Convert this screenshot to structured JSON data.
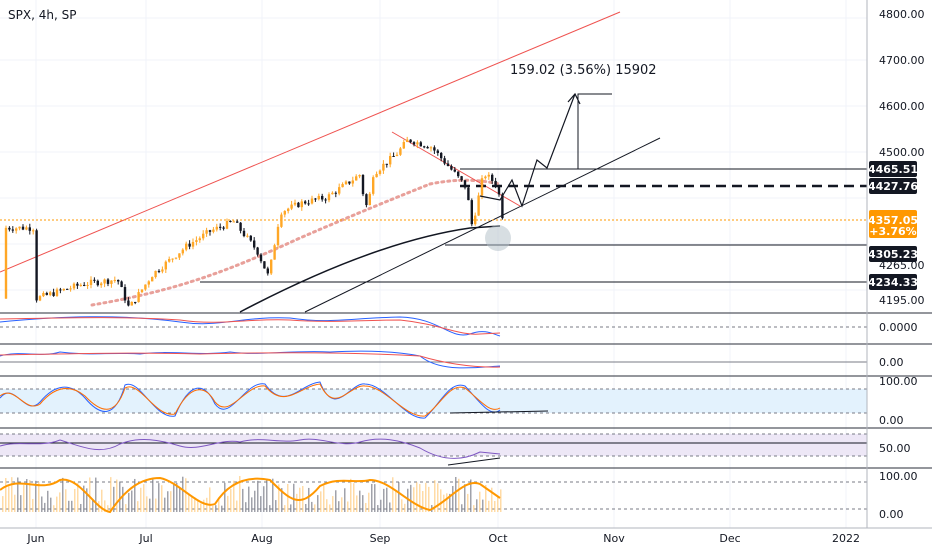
{
  "header": {
    "symbol_label": "SPX, 4h, SP"
  },
  "colors": {
    "bull": "#ffa726",
    "bear": "#131722",
    "channel": "#ef5350",
    "ma_dots": "#e8a09a",
    "fast_line": "#2962ff",
    "slow_line": "#ef5350",
    "stoch_bg": "#e3f2fd",
    "rsi_bg": "#ede7f6",
    "rsi_line": "#7e57c2",
    "tag_bg": "#131722",
    "last_price": "#ff9800"
  },
  "chart_data": [
    {
      "type": "candlestick",
      "title": "SPX, 4h, SP",
      "x_ticks": [
        "Jun",
        "Jul",
        "Aug",
        "Sep",
        "Oct",
        "Nov",
        "Dec",
        "2022"
      ],
      "y_ticks": [
        "4800.00",
        "4700.00",
        "4600.00",
        "4500.00",
        "4265.00",
        "4195.00"
      ],
      "ylim": [
        4180,
        4830
      ],
      "approx_close_path": [
        {
          "x": 0.0,
          "y": 4210
        },
        {
          "x": 0.4,
          "y": 4240
        },
        {
          "x": 0.7,
          "y": 4250
        },
        {
          "x": 0.8,
          "y": 4190
        },
        {
          "x": 1.0,
          "y": 4260
        },
        {
          "x": 1.3,
          "y": 4320
        },
        {
          "x": 1.5,
          "y": 4350
        },
        {
          "x": 1.7,
          "y": 4370
        },
        {
          "x": 1.9,
          "y": 4310
        },
        {
          "x": 2.0,
          "y": 4255
        },
        {
          "x": 2.1,
          "y": 4390
        },
        {
          "x": 2.3,
          "y": 4410
        },
        {
          "x": 2.5,
          "y": 4420
        },
        {
          "x": 2.8,
          "y": 4470
        },
        {
          "x": 2.8,
          "y": 4440
        },
        {
          "x": 2.85,
          "y": 4395
        },
        {
          "x": 2.9,
          "y": 4470
        },
        {
          "x": 3.1,
          "y": 4510
        },
        {
          "x": 3.2,
          "y": 4540
        },
        {
          "x": 3.4,
          "y": 4525
        },
        {
          "x": 3.6,
          "y": 4470
        },
        {
          "x": 3.7,
          "y": 4440
        },
        {
          "x": 3.75,
          "y": 4360
        },
        {
          "x": 3.85,
          "y": 4470
        },
        {
          "x": 3.95,
          "y": 4450
        },
        {
          "x": 4.0,
          "y": 4410
        },
        {
          "x": 4.02,
          "y": 4357
        }
      ],
      "price_tags": [
        {
          "value": 4465.51,
          "label": "4465.51"
        },
        {
          "value": 4427.76,
          "label": "4427.76"
        },
        {
          "value": 4357.05,
          "label": "4357.05",
          "sub": "+3.76%",
          "last": true
        },
        {
          "value": 4305.23,
          "label": "4305.23"
        },
        {
          "value": 4234.33,
          "label": "4234.33"
        }
      ],
      "annotation": "159.02 (3.56%) 15902"
    },
    {
      "type": "line",
      "panel": "oscillator-1",
      "y_ticks": [
        "0.0000"
      ]
    },
    {
      "type": "line",
      "panel": "oscillator-2",
      "y_ticks": [
        "0.00"
      ]
    },
    {
      "type": "line",
      "panel": "stochastic",
      "y_ticks": [
        "100.00",
        "0.00"
      ]
    },
    {
      "type": "line",
      "panel": "rsi",
      "y_ticks": [
        "50.00"
      ]
    },
    {
      "type": "bar",
      "panel": "momentum",
      "y_ticks": [
        "100.00",
        "0.00"
      ]
    }
  ]
}
